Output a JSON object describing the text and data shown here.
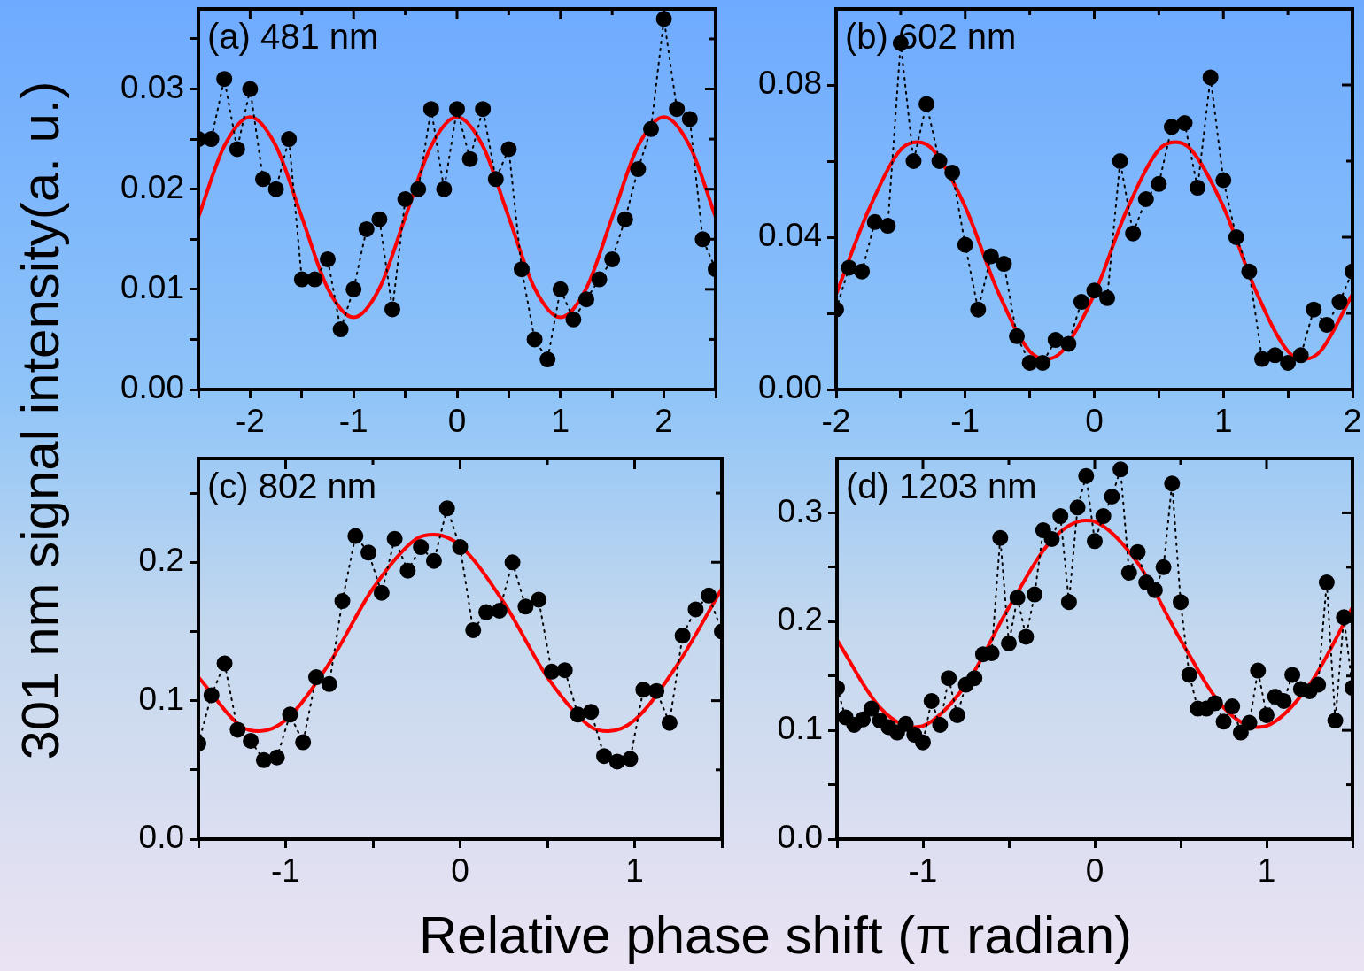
{
  "chart_data": [
    {
      "type": "line",
      "annotations": [
        "(a) 481 nm"
      ],
      "xlabel": "Relative phase shift (π radian)",
      "ylabel": "301 nm signal intensity(a. u.)",
      "xlim": [
        -2.5,
        2.5
      ],
      "xticks": [
        {
          "value": -2.5,
          "label": null
        },
        -2,
        {
          "value": -1.5,
          "label": null
        },
        -1,
        {
          "value": -0.5,
          "label": null
        },
        0,
        {
          "value": 0.5,
          "label": null
        },
        1,
        {
          "value": 1.5,
          "label": null
        },
        2,
        {
          "value": 2.5,
          "label": null
        }
      ],
      "ylim": [
        0,
        0.038
      ],
      "yticks": [
        {
          "value": 0,
          "label": "0.00"
        },
        {
          "value": 0.005,
          "label": null
        },
        {
          "value": 0.01,
          "label": "0.01"
        },
        {
          "value": 0.015,
          "label": null
        },
        {
          "value": 0.02,
          "label": "0.02"
        },
        {
          "value": 0.025,
          "label": null
        },
        {
          "value": 0.03,
          "label": "0.03"
        },
        {
          "value": 0.035,
          "label": null
        }
      ],
      "series": [
        {
          "color": "#000000",
          "marker": "circle",
          "line_style": "dotted",
          "x": [
            -2.5,
            -2.375,
            -2.25,
            -2.125,
            -2,
            -1.875,
            -1.75,
            -1.625,
            -1.5,
            -1.375,
            -1.25,
            -1.125,
            -1,
            -0.875,
            -0.75,
            -0.625,
            -0.5,
            -0.375,
            -0.25,
            -0.125,
            0,
            0.125,
            0.25,
            0.375,
            0.5,
            0.625,
            0.75,
            0.875,
            1,
            1.125,
            1.25,
            1.375,
            1.5,
            1.625,
            1.75,
            1.875,
            2,
            2.125,
            2.25,
            2.375,
            2.5
          ],
          "values": [
            0.025,
            0.025,
            0.031,
            0.024,
            0.03,
            0.021,
            0.02,
            0.025,
            0.011,
            0.011,
            0.013,
            0.006,
            0.01,
            0.016,
            0.017,
            0.008,
            0.019,
            0.02,
            0.028,
            0.02,
            0.028,
            0.023,
            0.028,
            0.021,
            0.024,
            0.012,
            0.005,
            0.003,
            0.01,
            0.007,
            0.009,
            0.011,
            0.013,
            0.017,
            0.022,
            0.026,
            0.037,
            0.028,
            0.027,
            0.015,
            0.012
          ]
        },
        {
          "color": "#ff0000",
          "marker": "none",
          "line_style": "solid",
          "x": [
            -2.5,
            -2.25,
            -2,
            -1.75,
            -1.5,
            -1.25,
            -1,
            -0.75,
            -0.5,
            -0.25,
            0,
            0.25,
            0.5,
            0.75,
            1,
            1.25,
            1.5,
            1.75,
            2,
            2.25,
            2.5
          ],
          "values": [
            0.0172,
            0.0243,
            0.0272,
            0.0243,
            0.0172,
            0.0101,
            0.0072,
            0.0101,
            0.0172,
            0.0243,
            0.0272,
            0.0243,
            0.0172,
            0.0101,
            0.0072,
            0.0101,
            0.0172,
            0.0243,
            0.0272,
            0.0243,
            0.0172
          ]
        }
      ]
    },
    {
      "type": "line",
      "annotations": [
        "(b) 602 nm"
      ],
      "xlim": [
        -2,
        2
      ],
      "xticks": [
        -2,
        {
          "value": -1.5,
          "label": null
        },
        -1,
        {
          "value": -0.5,
          "label": null
        },
        0,
        {
          "value": 0.5,
          "label": null
        },
        1,
        {
          "value": 1.5,
          "label": null
        },
        2
      ],
      "ylim": [
        0,
        0.1
      ],
      "yticks": [
        {
          "value": 0,
          "label": "0.00"
        },
        {
          "value": 0.02,
          "label": null
        },
        {
          "value": 0.04,
          "label": "0.04"
        },
        {
          "value": 0.06,
          "label": null
        },
        {
          "value": 0.08,
          "label": "0.08"
        }
      ],
      "series": [
        {
          "color": "#000000",
          "marker": "circle",
          "line_style": "dotted",
          "x": [
            -2,
            -1.9,
            -1.8,
            -1.7,
            -1.6,
            -1.5,
            -1.4,
            -1.3,
            -1.2,
            -1.1,
            -1,
            -0.9,
            -0.8,
            -0.7,
            -0.6,
            -0.5,
            -0.4,
            -0.3,
            -0.2,
            -0.1,
            0,
            0.1,
            0.2,
            0.3,
            0.4,
            0.5,
            0.6,
            0.7,
            0.8,
            0.9,
            1,
            1.1,
            1.2,
            1.3,
            1.4,
            1.5,
            1.6,
            1.7,
            1.8,
            1.9,
            2
          ],
          "values": [
            0.021,
            0.032,
            0.031,
            0.044,
            0.043,
            0.091,
            0.06,
            0.075,
            0.06,
            0.057,
            0.038,
            0.021,
            0.035,
            0.033,
            0.014,
            0.007,
            0.007,
            0.013,
            0.012,
            0.023,
            0.026,
            0.024,
            0.06,
            0.041,
            0.05,
            0.054,
            0.069,
            0.07,
            0.053,
            0.082,
            0.055,
            0.04,
            0.031,
            0.008,
            0.009,
            0.007,
            0.009,
            0.021,
            0.017,
            0.023,
            0.031
          ]
        },
        {
          "color": "#ff0000",
          "marker": "none",
          "line_style": "solid",
          "x": [
            -2,
            -1.75,
            -1.5,
            -1.37,
            -1.25,
            -1,
            -0.75,
            -0.5,
            -0.37,
            -0.25,
            0,
            0.25,
            0.5,
            0.63,
            0.75,
            1,
            1.25,
            1.5,
            1.63,
            1.75,
            2
          ],
          "values": [
            0.025,
            0.047,
            0.063,
            0.065,
            0.063,
            0.048,
            0.026,
            0.01,
            0.008,
            0.01,
            0.025,
            0.047,
            0.063,
            0.065,
            0.063,
            0.048,
            0.026,
            0.01,
            0.008,
            0.01,
            0.025
          ]
        }
      ]
    },
    {
      "type": "line",
      "annotations": [
        "(c) 802 nm"
      ],
      "xlim": [
        -1.5,
        1.5
      ],
      "xticks": [
        {
          "value": -1.5,
          "label": null
        },
        -1,
        {
          "value": -0.5,
          "label": null
        },
        0,
        {
          "value": 0.5,
          "label": null
        },
        1,
        {
          "value": 1.5,
          "label": null
        }
      ],
      "ylim": [
        0,
        0.275
      ],
      "yticks": [
        {
          "value": 0,
          "label": "0.0"
        },
        {
          "value": 0.05,
          "label": null
        },
        {
          "value": 0.1,
          "label": "0.1"
        },
        {
          "value": 0.15,
          "label": null
        },
        {
          "value": 0.2,
          "label": "0.2"
        },
        {
          "value": 0.25,
          "label": null
        }
      ],
      "series": [
        {
          "color": "#000000",
          "marker": "circle",
          "line_style": "dotted",
          "x": [
            -1.5,
            -1.425,
            -1.35,
            -1.275,
            -1.2,
            -1.125,
            -1.05,
            -0.975,
            -0.9,
            -0.825,
            -0.75,
            -0.675,
            -0.6,
            -0.525,
            -0.45,
            -0.375,
            -0.3,
            -0.225,
            -0.15,
            -0.075,
            0,
            0.075,
            0.15,
            0.225,
            0.3,
            0.375,
            0.45,
            0.525,
            0.6,
            0.675,
            0.75,
            0.825,
            0.9,
            0.975,
            1.05,
            1.125,
            1.2,
            1.275,
            1.35,
            1.425,
            1.5
          ],
          "values": [
            0.069,
            0.104,
            0.127,
            0.079,
            0.071,
            0.057,
            0.059,
            0.09,
            0.07,
            0.117,
            0.112,
            0.172,
            0.219,
            0.207,
            0.178,
            0.217,
            0.194,
            0.211,
            0.201,
            0.239,
            0.211,
            0.151,
            0.164,
            0.165,
            0.2,
            0.168,
            0.173,
            0.121,
            0.122,
            0.09,
            0.092,
            0.06,
            0.056,
            0.058,
            0.108,
            0.107,
            0.084,
            0.147,
            0.166,
            0.176,
            0.15
          ]
        },
        {
          "color": "#ff0000",
          "marker": "none",
          "line_style": "solid",
          "x": [
            -1.5,
            -1.25,
            -1.15,
            -1,
            -0.75,
            -0.5,
            -0.25,
            -0.15,
            0,
            0.25,
            0.5,
            0.75,
            0.85,
            1,
            1.25,
            1.5
          ],
          "values": [
            0.117,
            0.081,
            0.078,
            0.086,
            0.127,
            0.181,
            0.217,
            0.22,
            0.212,
            0.171,
            0.117,
            0.081,
            0.078,
            0.086,
            0.127,
            0.181
          ]
        }
      ]
    },
    {
      "type": "line",
      "annotations": [
        "(d) 1203 nm"
      ],
      "xlim": [
        -1.5,
        1.5
      ],
      "xticks": [
        {
          "value": -1.5,
          "label": null
        },
        -1,
        {
          "value": -0.5,
          "label": null
        },
        0,
        {
          "value": 0.5,
          "label": null
        },
        1,
        {
          "value": 1.5,
          "label": null
        }
      ],
      "ylim": [
        0,
        0.35
      ],
      "yticks": [
        {
          "value": 0,
          "label": "0.0"
        },
        {
          "value": 0.05,
          "label": null
        },
        {
          "value": 0.1,
          "label": "0.1"
        },
        {
          "value": 0.15,
          "label": null
        },
        {
          "value": 0.2,
          "label": "0.2"
        },
        {
          "value": 0.25,
          "label": null
        },
        {
          "value": 0.3,
          "label": "0.3"
        }
      ],
      "series": [
        {
          "color": "#000000",
          "marker": "circle",
          "line_style": "dotted",
          "x": [
            -1.5,
            -1.45,
            -1.4,
            -1.35,
            -1.3,
            -1.25,
            -1.2,
            -1.15,
            -1.1,
            -1.05,
            -1,
            -0.95,
            -0.9,
            -0.85,
            -0.8,
            -0.75,
            -0.7,
            -0.65,
            -0.6,
            -0.55,
            -0.5,
            -0.45,
            -0.4,
            -0.35,
            -0.3,
            -0.25,
            -0.2,
            -0.15,
            -0.1,
            -0.05,
            0,
            0.05,
            0.1,
            0.15,
            0.2,
            0.25,
            0.3,
            0.35,
            0.4,
            0.45,
            0.5,
            0.55,
            0.6,
            0.65,
            0.7,
            0.75,
            0.8,
            0.85,
            0.9,
            0.95,
            1,
            1.05,
            1.1,
            1.15,
            1.2,
            1.25,
            1.3,
            1.35,
            1.4,
            1.45,
            1.5
          ],
          "values": [
            0.139,
            0.112,
            0.105,
            0.11,
            0.12,
            0.109,
            0.103,
            0.098,
            0.106,
            0.096,
            0.089,
            0.127,
            0.105,
            0.148,
            0.114,
            0.142,
            0.148,
            0.17,
            0.171,
            0.277,
            0.18,
            0.222,
            0.186,
            0.225,
            0.284,
            0.276,
            0.297,
            0.218,
            0.305,
            0.334,
            0.274,
            0.297,
            0.315,
            0.34,
            0.245,
            0.264,
            0.236,
            0.229,
            0.25,
            0.327,
            0.218,
            0.151,
            0.12,
            0.12,
            0.125,
            0.108,
            0.122,
            0.098,
            0.107,
            0.155,
            0.114,
            0.131,
            0.127,
            0.151,
            0.138,
            0.136,
            0.142,
            0.236,
            0.109,
            0.204,
            0.139
          ]
        },
        {
          "color": "#ff0000",
          "marker": "none",
          "line_style": "solid",
          "x": [
            -1.5,
            -1.25,
            -1.05,
            -1,
            -0.75,
            -0.5,
            -0.25,
            -0.05,
            0,
            0.25,
            0.5,
            0.75,
            0.95,
            1,
            1.25,
            1.5
          ],
          "values": [
            0.183,
            0.121,
            0.103,
            0.104,
            0.142,
            0.213,
            0.275,
            0.293,
            0.292,
            0.254,
            0.183,
            0.121,
            0.103,
            0.104,
            0.142,
            0.213
          ]
        }
      ]
    }
  ]
}
